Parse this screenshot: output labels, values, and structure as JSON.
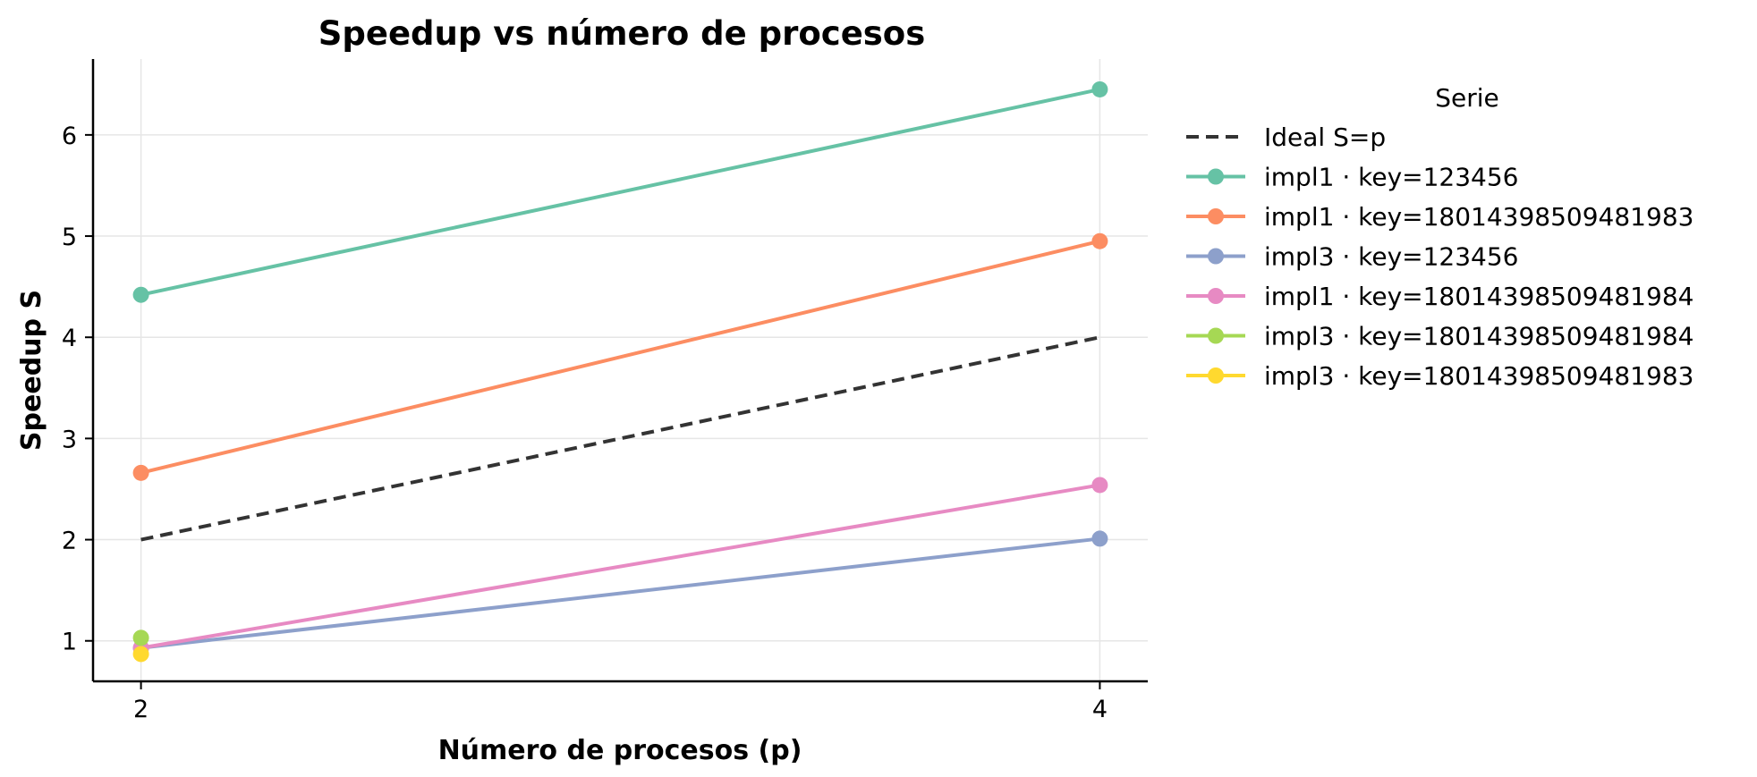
{
  "chart_data": {
    "type": "line",
    "title": "Speedup vs número de procesos",
    "xlabel": "Número de procesos (p)",
    "ylabel": "Speedup S",
    "x": [
      2,
      4
    ],
    "xlim": [
      1.9,
      4.1
    ],
    "ylim": [
      0.6,
      6.75
    ],
    "xticks": [
      2,
      4
    ],
    "yticks": [
      1,
      2,
      3,
      4,
      5,
      6
    ],
    "grid": true,
    "legend": {
      "title": "Serie",
      "position": "outside-right"
    },
    "series": [
      {
        "name": "Ideal S=p",
        "values": [
          2,
          4
        ],
        "color": "#333333",
        "style": "dashed",
        "marker": false
      },
      {
        "name": "impl1 · key=123456",
        "values": [
          4.42,
          6.45
        ],
        "color": "#66c2a5",
        "style": "solid",
        "marker": true
      },
      {
        "name": "impl1 · key=18014398509481983",
        "values": [
          2.66,
          4.95
        ],
        "color": "#fc8d62",
        "style": "solid",
        "marker": true
      },
      {
        "name": "impl3 · key=123456",
        "values": [
          0.93,
          2.01
        ],
        "color": "#8da0cb",
        "style": "solid",
        "marker": true
      },
      {
        "name": "impl1 · key=18014398509481984",
        "values": [
          0.93,
          2.54
        ],
        "color": "#e78ac3",
        "style": "solid",
        "marker": true
      },
      {
        "name": "impl3 · key=18014398509481984",
        "values": [
          1.03,
          null
        ],
        "color": "#a6d854",
        "style": "solid",
        "marker": true
      },
      {
        "name": "impl3 · key=18014398509481983",
        "values": [
          0.87,
          null
        ],
        "color": "#ffd92f",
        "style": "solid",
        "marker": true
      }
    ]
  }
}
